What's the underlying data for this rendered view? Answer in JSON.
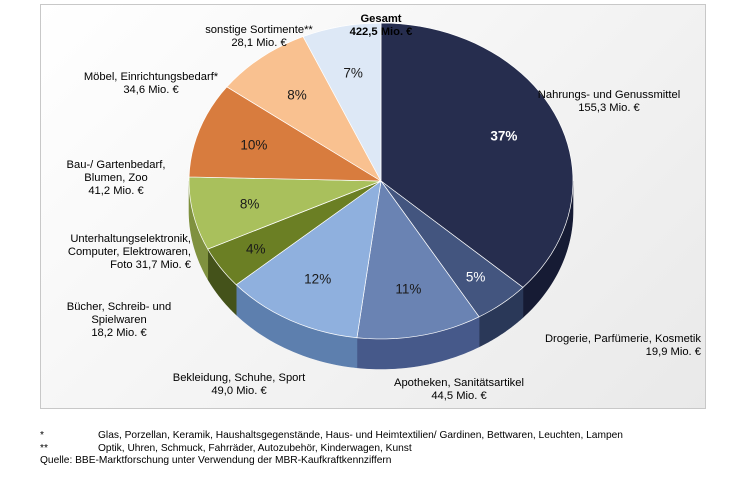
{
  "chart_data": {
    "type": "pie",
    "title": "",
    "total": {
      "label": "Gesamt",
      "value_text": "422,5 Mio. €",
      "value": 422.5
    },
    "series": [
      {
        "values": [
          155.3,
          19.9,
          44.5,
          49.0,
          18.2,
          31.7,
          41.2,
          34.6,
          28.1
        ]
      }
    ],
    "slices": [
      {
        "label": "Nahrungs- und Genussmittel",
        "value": 155.3,
        "value_text": "155,3 Mio. €",
        "pct_text": "37%",
        "color": "#262d4e",
        "side": "#161b34",
        "pct_color": "#ffffff"
      },
      {
        "label": "Drogerie, Parfümerie, Kosmetik",
        "value": 19.9,
        "value_text": "19,9 Mio. €",
        "pct_text": "5%",
        "color": "#43557f",
        "side": "#2a3858",
        "pct_color": "#ffffff"
      },
      {
        "label": "Apotheken, Sanitätsartikel",
        "value": 44.5,
        "value_text": "44,5 Mio. €",
        "pct_text": "11%",
        "color": "#6a83b3",
        "side": "#46598a",
        "pct_color": "#1a1a1a"
      },
      {
        "label": "Bekleidung, Schuhe, Sport",
        "value": 49.0,
        "value_text": "49,0 Mio. €",
        "pct_text": "12%",
        "color": "#8fb0de",
        "side": "#5d7fae",
        "pct_color": "#1a1a1a"
      },
      {
        "label": "Bücher, Schreib- und Spielwaren",
        "value": 18.2,
        "value_text": "18,2 Mio. €",
        "pct_text": "4%",
        "color": "#6b7f24",
        "side": "#44521a",
        "pct_color": "#1a1a1a"
      },
      {
        "label": "Unterhaltungselektronik, Computer, Elektrowaren, Foto",
        "value": 31.7,
        "value_text": "31,7 Mio. €",
        "pct_text": "8%",
        "color": "#a9c05c",
        "side": "#7f913f",
        "pct_color": "#1a1a1a"
      },
      {
        "label": "Bau-/ Gartenbedarf, Blumen, Zoo",
        "value": 41.2,
        "value_text": "41,2 Mio. €",
        "pct_text": "10%",
        "color": "#d87c3e",
        "side": "#a85a27",
        "pct_color": "#1a1a1a"
      },
      {
        "label": "Möbel, Einrichtungsbedarf*",
        "value": 34.6,
        "value_text": "34,6 Mio. €",
        "pct_text": "8%",
        "color": "#f9c190",
        "side": "#d69a68",
        "pct_color": "#1a1a1a"
      },
      {
        "label": "sonstige Sortimente**",
        "value": 28.1,
        "value_text": "28,1 Mio. €",
        "pct_text": "7%",
        "color": "#dde8f6",
        "side": "#b3c0d3",
        "pct_color": "#1a1a1a"
      }
    ]
  },
  "labels": {
    "gesamt_title": "Gesamt",
    "gesamt_value": "422,5 Mio. €",
    "sonstige_l1": "sonstige Sortimente**",
    "sonstige_l2": "28,1 Mio. €",
    "moebel_l1": "Möbel, Einrichtungsbedarf*",
    "moebel_l2": "34,6 Mio. €",
    "bau_l1": "Bau-/ Gartenbedarf,",
    "bau_l2": "Blumen, Zoo",
    "bau_l3": "41,2 Mio. €",
    "ue_l1": "Unterhaltungselektronik,",
    "ue_l2": "Computer, Elektrowaren,",
    "ue_l3": "Foto   31,7 Mio. €",
    "buecher_l1": "Bücher, Schreib- und",
    "buecher_l2": "Spielwaren",
    "buecher_l3": "18,2 Mio. €",
    "bekleidung_l1": "Bekleidung, Schuhe, Sport",
    "bekleidung_l2": "49,0 Mio. €",
    "apotheken_l1": "Apotheken, Sanitätsartikel",
    "apotheken_l2": "44,5 Mio. €",
    "drogerie_l1": "Drogerie, Parfümerie, Kosmetik",
    "drogerie_l2": "19,9 Mio. €",
    "nahrung_l1": "Nahrungs- und Genussmittel",
    "nahrung_l2": "155,3 Mio. €"
  },
  "footnotes": {
    "n1_marker": "*",
    "n1_text": "Glas, Porzellan, Keramik, Haushaltsgegenstände, Haus- und Heimtextilien/ Gardinen, Bettwaren, Leuchten, Lampen",
    "n2_marker": "**",
    "n2_text": "Optik, Uhren, Schmuck, Fahrräder, Autozubehör, Kinderwagen, Kunst",
    "source": "Quelle: BBE-Marktforschung unter Verwendung der MBR-Kaufkraftkennziffern"
  }
}
